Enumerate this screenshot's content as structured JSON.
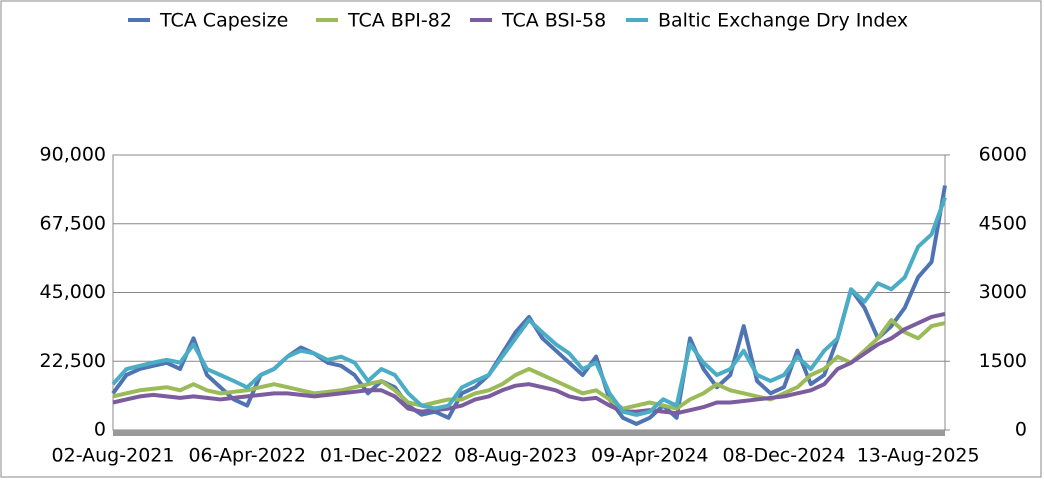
{
  "chart_data": {
    "type": "line",
    "categories": [
      "02-Aug-2021",
      null,
      null,
      null,
      null,
      null,
      null,
      null,
      null,
      null,
      "06-Apr-2022",
      null,
      null,
      null,
      null,
      null,
      null,
      null,
      null,
      null,
      "01-Dec-2022",
      null,
      null,
      null,
      null,
      null,
      null,
      null,
      null,
      null,
      "08-Aug-2023",
      null,
      null,
      null,
      null,
      null,
      null,
      null,
      null,
      null,
      "09-Apr-2024",
      null,
      null,
      null,
      null,
      null,
      null,
      null,
      null,
      null,
      "08-Dec-2024",
      null,
      null,
      null,
      null,
      null,
      null,
      null,
      null,
      null,
      "13-Aug-2025",
      null,
      null
    ],
    "series": [
      {
        "name": "TCA Capesize",
        "color": "#4f74b3",
        "values": [
          12000,
          18000,
          20000,
          21000,
          22000,
          20000,
          30000,
          18000,
          14000,
          10000,
          8000,
          18000,
          20000,
          24000,
          27000,
          25000,
          22000,
          21000,
          18000,
          12000,
          16000,
          14000,
          8000,
          5000,
          6000,
          4000,
          12000,
          14000,
          18000,
          25000,
          32000,
          37000,
          30000,
          26000,
          22000,
          18000,
          24000,
          10000,
          4000,
          2000,
          4000,
          8000,
          4000,
          30000,
          20000,
          14000,
          18000,
          34000,
          16000,
          12000,
          14000,
          26000,
          15000,
          18000,
          30000,
          46000,
          40000,
          30000,
          34000,
          40000,
          50000,
          55000,
          80000
        ]
      },
      {
        "name": "TCA BPI-82",
        "color": "#9bbb59",
        "values": [
          11000,
          12000,
          13000,
          13500,
          14000,
          13000,
          15000,
          13000,
          12000,
          12500,
          13000,
          14000,
          15000,
          14000,
          13000,
          12000,
          12500,
          13000,
          14000,
          15000,
          16000,
          13000,
          9000,
          8000,
          9000,
          10000,
          10000,
          12000,
          13000,
          15000,
          18000,
          20000,
          18000,
          16000,
          14000,
          12000,
          13000,
          10000,
          7000,
          8000,
          9000,
          8000,
          7000,
          10000,
          12000,
          15000,
          13000,
          12000,
          11000,
          10000,
          12000,
          14000,
          18000,
          20000,
          24000,
          22000,
          26000,
          30000,
          36000,
          32000,
          30000,
          34000,
          35000
        ]
      },
      {
        "name": "TCA  BSI-58",
        "color": "#7b5c9e",
        "values": [
          9000,
          10000,
          11000,
          11500,
          11000,
          10500,
          11000,
          10500,
          10000,
          10500,
          11000,
          11500,
          12000,
          12000,
          11500,
          11000,
          11500,
          12000,
          12500,
          13000,
          13000,
          11000,
          7000,
          6000,
          6500,
          7000,
          8000,
          10000,
          11000,
          13000,
          14500,
          15000,
          14000,
          13000,
          11000,
          10000,
          10500,
          8000,
          6000,
          6000,
          6500,
          6000,
          5500,
          6500,
          7500,
          9000,
          9000,
          9500,
          10000,
          10500,
          11000,
          12000,
          13000,
          15000,
          20000,
          22000,
          25000,
          28000,
          30000,
          33000,
          35000,
          37000,
          38000
        ]
      },
      {
        "name": "Baltic Exchange Dry Index",
        "color": "#4bacc6",
        "axis": "y2",
        "values": [
          1000,
          1330,
          1400,
          1470,
          1530,
          1470,
          1870,
          1330,
          1200,
          1070,
          930,
          1200,
          1330,
          1600,
          1730,
          1670,
          1530,
          1600,
          1470,
          1070,
          1330,
          1200,
          800,
          530,
          470,
          530,
          930,
          1070,
          1200,
          1600,
          2000,
          2400,
          2130,
          1870,
          1670,
          1330,
          1470,
          800,
          400,
          330,
          400,
          670,
          530,
          1870,
          1470,
          1200,
          1330,
          1730,
          1200,
          1070,
          1200,
          1600,
          1330,
          1730,
          2000,
          3070,
          2800,
          3200,
          3070,
          3330,
          4000,
          4270,
          5070
        ]
      }
    ],
    "ylim": [
      0,
      90000
    ],
    "yticks": [
      {
        "value": 0,
        "label": "0"
      },
      {
        "value": 22500,
        "label": "22,500"
      },
      {
        "value": 45000,
        "label": "45,000"
      },
      {
        "value": 67500,
        "label": "67,500"
      },
      {
        "value": 90000,
        "label": "90,000"
      }
    ],
    "y2lim": [
      0,
      6000
    ],
    "y2ticks": [
      0,
      1500,
      3000,
      4500,
      6000
    ],
    "grid": true,
    "legend": "top"
  }
}
